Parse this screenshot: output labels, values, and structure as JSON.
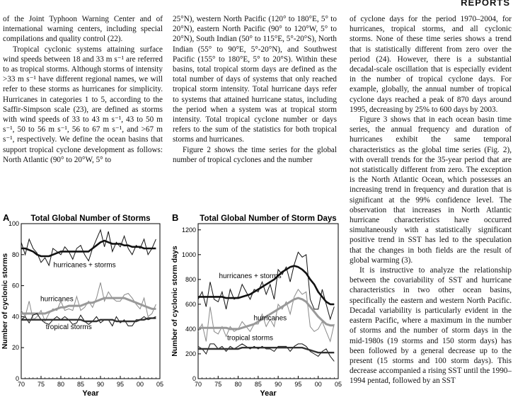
{
  "header": {
    "title": "REPORTS"
  },
  "col1": [
    "of the Joint Typhoon Warning Center and of international warning centers, including special compilations and quality control (22).",
    "Tropical cyclonic systems attaining surface wind speeds between 18 and 33 m s⁻¹ are referred to as tropical storms. Although storms of intensity >33 m s⁻¹ have different regional names, we will refer to these storms as hurricanes for simplicity. Hurricanes in categories 1 to 5, according to the Saffir-Simpson scale (23), are defined as storms with wind speeds of 33 to 43 m s⁻¹, 43 to 50 m s⁻¹, 50 to 56 m s⁻¹, 56 to 67 m s⁻¹, and >67 m s⁻¹, respectively. We define the ocean basins that support tropical cyclone development as follows: North Atlantic (90° to 20°W, 5° to"
  ],
  "col2": [
    "25°N), western North Pacific (120° to 180°E, 5° to 20°N), eastern North Pacific (90° to 120°W, 5° to 20°N), South Indian (50° to 115°E, 5°-20°S), North Indian (55° to 90°E, 5°-20°N), and Southwest Pacific (155° to 180°E, 5° to 20°S). Within these basins, total tropical storm days are defined as the total number of days of systems that only reached tropical storm intensity. Total hurricane days refer to systems that attained hurricane status, including the period when a system was at tropical storm intensity. Total tropical cyclone number or days refers to the sum of the statistics for both tropical storms and hurricanes.",
    "Figure 2 shows the time series for the global number of tropical cyclones and the number"
  ],
  "col3": [
    "of cyclone days for the period 1970–2004, for hurricanes, tropical storms, and all cyclonic storms. None of these time series shows a trend that is statistically different from zero over the period (24). However, there is a substantial decadal-scale oscillation that is especially evident in the number of tropical cyclone days. For example, globally, the annual number of tropical cyclone days reached a peak of 870 days around 1995, decreasing by 25% to 600 days by 2003.",
    "Figure 3 shows that in each ocean basin time series, the annual frequency and duration of hurricanes exhibit the same temporal characteristics as the global time series (Fig. 2), with overall trends for the 35-year period that are not statistically different from zero. The exception is the North Atlantic Ocean, which possesses an increasing trend in frequency and duration that is significant at the 99% confidence level. The observation that increases in North Atlantic hurricane characteristics have occurred simultaneously with a statistically significant positive trend in SST has led to the speculation that the changes in both fields are the result of global warming (3).",
    "It is instructive to analyze the relationship between the covariability of SST and hurricane characteristics in two other ocean basins, specifically the eastern and western North Pacific. Decadal variability is particularly evident in the eastern Pacific, where a maximum in the number of storms and the number of storm days in the mid-1980s (19 storms and 150 storm days) has been followed by a general decrease up to the present (15 storms and 100 storm days). This decrease accompanied a rising SST until the 1990–1994 pentad, followed by an SST"
  ],
  "chart_data": [
    {
      "type": "line",
      "panel": "A",
      "title": "Total Global Number of Storms",
      "xlabel": "Year",
      "ylabel": "Number of cyclonic storms",
      "xlim": [
        1970,
        2005
      ],
      "ylim": [
        0,
        100
      ],
      "xticks": [
        "70",
        "75",
        "80",
        "85",
        "90",
        "95",
        "00",
        "05"
      ],
      "yticks": [
        0,
        20,
        40,
        60,
        80,
        100
      ],
      "x": [
        1970,
        1971,
        1972,
        1973,
        1974,
        1975,
        1976,
        1977,
        1978,
        1979,
        1980,
        1981,
        1982,
        1983,
        1984,
        1985,
        1986,
        1987,
        1988,
        1989,
        1990,
        1991,
        1992,
        1993,
        1994,
        1995,
        1996,
        1997,
        1998,
        1999,
        2000,
        2001,
        2002,
        2003,
        2004
      ],
      "series": [
        {
          "name": "hurricanes + storms",
          "values": [
            88,
            80,
            90,
            84,
            81,
            75,
            78,
            73,
            84,
            82,
            80,
            85,
            82,
            77,
            84,
            86,
            80,
            76,
            84,
            90,
            96,
            85,
            95,
            82,
            88,
            85,
            92,
            84,
            80,
            86,
            84,
            90,
            80,
            84,
            90
          ],
          "smoothed": [
            84,
            84,
            83,
            82,
            80,
            79,
            79,
            79,
            80,
            81,
            82,
            82,
            82,
            82,
            82,
            82,
            82,
            82,
            84,
            86,
            88,
            89,
            88,
            87,
            87,
            87,
            86,
            86,
            85,
            85,
            85,
            84,
            84,
            84,
            84
          ]
        },
        {
          "name": "hurricanes",
          "values": [
            44,
            40,
            50,
            38,
            40,
            44,
            37,
            42,
            45,
            44,
            50,
            44,
            45,
            44,
            53,
            44,
            46,
            50,
            46,
            52,
            62,
            50,
            56,
            52,
            50,
            50,
            54,
            55,
            52,
            48,
            45,
            52,
            40,
            42,
            48
          ],
          "smoothed": [
            42,
            42,
            42,
            42,
            42,
            42,
            42,
            43,
            44,
            45,
            46,
            46,
            47,
            47,
            47,
            47,
            48,
            49,
            49,
            50,
            51,
            52,
            52,
            52,
            52,
            52,
            52,
            51,
            50,
            49,
            48,
            47,
            46,
            45,
            45
          ]
        },
        {
          "name": "tropical storms",
          "values": [
            38,
            40,
            36,
            41,
            42,
            38,
            36,
            35,
            38,
            40,
            38,
            40,
            38,
            35,
            36,
            41,
            37,
            35,
            37,
            40,
            36,
            38,
            38,
            34,
            40,
            36,
            38,
            34,
            34,
            38,
            38,
            40,
            38,
            39,
            40
          ],
          "smoothed": [
            38,
            38,
            38,
            38,
            38,
            38,
            38,
            38,
            38,
            38,
            38,
            38,
            38,
            38,
            38,
            38,
            37,
            37,
            37,
            37,
            38,
            38,
            38,
            38,
            37,
            37,
            37,
            37,
            37,
            37,
            38,
            38,
            39,
            39,
            39
          ]
        }
      ]
    },
    {
      "type": "line",
      "panel": "B",
      "title": "Total Global Number of Storm Days",
      "xlabel": "Year",
      "ylabel": "Number of cyclonic storm days",
      "xlim": [
        1970,
        2005
      ],
      "ylim": [
        0,
        1250
      ],
      "xticks": [
        "70",
        "75",
        "80",
        "85",
        "90",
        "95",
        "00",
        "05"
      ],
      "yticks": [
        0,
        200,
        400,
        600,
        800,
        1000,
        1200
      ],
      "x": [
        1970,
        1971,
        1972,
        1973,
        1974,
        1975,
        1976,
        1977,
        1978,
        1979,
        1980,
        1981,
        1982,
        1983,
        1984,
        1985,
        1986,
        1987,
        1988,
        1989,
        1990,
        1991,
        1992,
        1993,
        1994,
        1995,
        1996,
        1997,
        1998,
        1999,
        2000,
        2001,
        2002,
        2003,
        2004
      ],
      "series": [
        {
          "name": "hurricanes + storms",
          "values": [
            640,
            700,
            580,
            780,
            640,
            620,
            700,
            560,
            720,
            640,
            660,
            760,
            700,
            640,
            720,
            700,
            780,
            680,
            760,
            640,
            880,
            840,
            900,
            780,
            920,
            1020,
            980,
            1000,
            640,
            560,
            560,
            720,
            600,
            480,
            580
          ],
          "smoothed": [
            660,
            660,
            660,
            660,
            660,
            660,
            660,
            650,
            650,
            650,
            650,
            660,
            670,
            680,
            700,
            720,
            740,
            760,
            780,
            800,
            830,
            860,
            880,
            900,
            910,
            900,
            880,
            850,
            800,
            760,
            700,
            660,
            620,
            600,
            600
          ]
        },
        {
          "name": "hurricanes",
          "values": [
            380,
            440,
            300,
            580,
            380,
            360,
            420,
            340,
            420,
            380,
            400,
            460,
            420,
            380,
            440,
            440,
            520,
            420,
            480,
            420,
            600,
            560,
            620,
            520,
            660,
            720,
            680,
            700,
            420,
            380,
            400,
            460,
            380,
            300,
            440
          ],
          "smoothed": [
            410,
            410,
            410,
            410,
            410,
            410,
            410,
            410,
            400,
            400,
            400,
            410,
            420,
            430,
            440,
            460,
            480,
            500,
            520,
            540,
            560,
            580,
            600,
            620,
            640,
            650,
            640,
            620,
            580,
            540,
            500,
            470,
            440,
            430,
            430
          ]
        },
        {
          "name": "tropical storms",
          "values": [
            260,
            240,
            200,
            280,
            280,
            240,
            260,
            220,
            260,
            240,
            260,
            280,
            260,
            240,
            260,
            240,
            260,
            240,
            240,
            220,
            260,
            260,
            260,
            220,
            260,
            280,
            280,
            260,
            220,
            200,
            180,
            220,
            240,
            180,
            140
          ],
          "smoothed": [
            240,
            240,
            240,
            240,
            240,
            240,
            240,
            240,
            240,
            240,
            240,
            250,
            250,
            250,
            250,
            250,
            250,
            250,
            250,
            250,
            250,
            250,
            250,
            250,
            250,
            250,
            250,
            240,
            230,
            220,
            210,
            210,
            210,
            210,
            210
          ]
        }
      ]
    }
  ]
}
